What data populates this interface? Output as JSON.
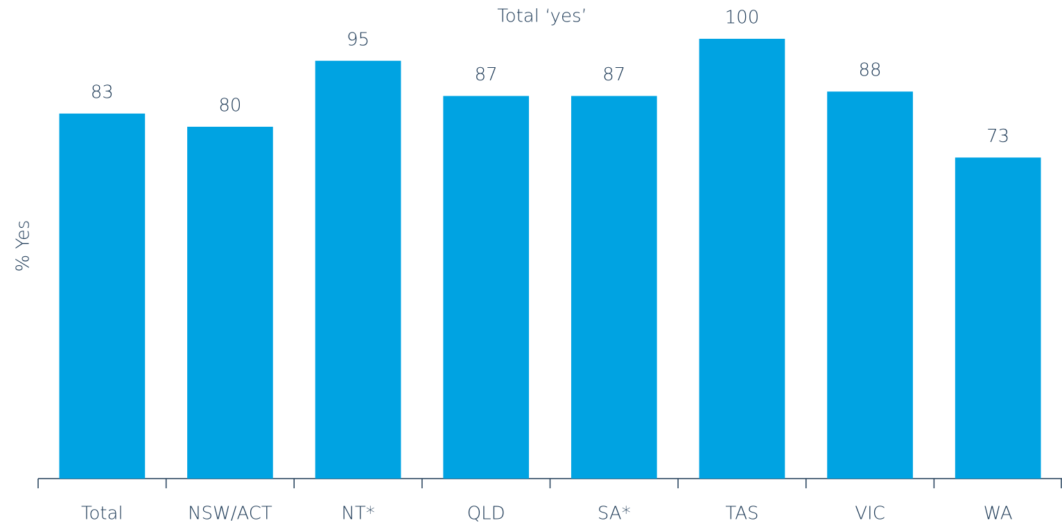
{
  "chart_data": {
    "type": "bar",
    "title": "Total ‘yes’",
    "y_label": "% Yes",
    "categories": [
      "Total",
      "NSW/ACT",
      "NT*",
      "QLD",
      "SA*",
      "TAS",
      "VIC",
      "WA"
    ],
    "values": [
      83,
      80,
      95,
      87,
      87,
      100,
      88,
      73
    ],
    "color": "#00a3e2",
    "ylim": [
      0,
      100
    ],
    "grid": false
  }
}
